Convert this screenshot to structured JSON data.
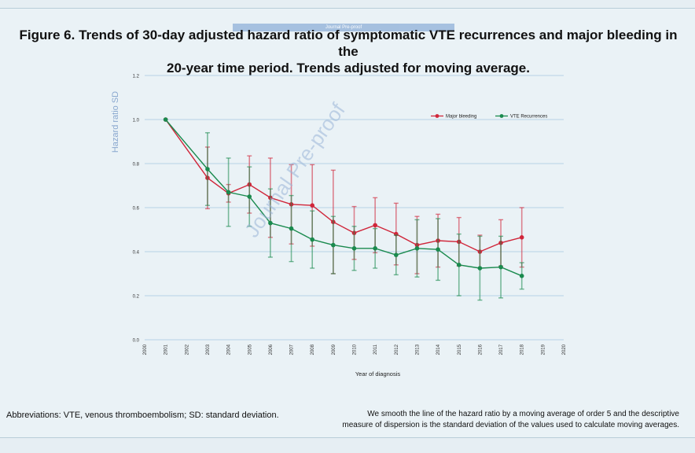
{
  "header": {
    "journal_tag": "Journal Pre-proof",
    "title_line1": "Figure 6. Trends of 30-day adjusted hazard ratio of symptomatic VTE recurrences and major bleeding in the",
    "title_line2": "20-year time period. Trends adjusted for moving average."
  },
  "watermark": "Journal Pre-proof",
  "chart_data": {
    "type": "line",
    "title": "Figure 6. Trends of 30-day adjusted hazard ratio of symptomatic VTE recurrences and major bleeding in the 20-year time period. Trends adjusted for moving average.",
    "xlabel": "Year of diagnosis",
    "ylabel": "Hazard ratio SD",
    "xlim": [
      2000,
      2020
    ],
    "ylim": [
      0,
      1.2
    ],
    "x_ticks": [
      "2000",
      "2001",
      "2002",
      "2003",
      "2004",
      "2005",
      "2006",
      "2007",
      "2008",
      "2009",
      "2010",
      "2011",
      "2012",
      "2013",
      "2014",
      "2015",
      "2016",
      "2017",
      "2018",
      "2019",
      "2020"
    ],
    "y_ticks": [
      "0.0",
      "0.2",
      "0.4",
      "0.6",
      "0.8",
      "1.0",
      "1.2"
    ],
    "grid": "horizontal",
    "legend_position": "top-right",
    "series": [
      {
        "name": "Major bleeding",
        "color": "#d0263a",
        "x": [
          2001,
          2003,
          2004,
          2005,
          2006,
          2007,
          2008,
          2009,
          2010,
          2011,
          2012,
          2013,
          2014,
          2015,
          2016,
          2017,
          2018
        ],
        "values": [
          1.0,
          0.735,
          0.665,
          0.705,
          0.645,
          0.615,
          0.61,
          0.535,
          0.485,
          0.52,
          0.48,
          0.43,
          0.45,
          0.445,
          0.4,
          0.44,
          0.465
        ],
        "error": [
          0,
          0.14,
          0.04,
          0.13,
          0.18,
          0.18,
          0.185,
          0.235,
          0.12,
          0.125,
          0.14,
          0.13,
          0.12,
          0.11,
          0.075,
          0.105,
          0.135
        ]
      },
      {
        "name": "VTE Recurrences",
        "color": "#1a8a4e",
        "x": [
          2001,
          2003,
          2004,
          2005,
          2006,
          2007,
          2008,
          2009,
          2010,
          2011,
          2012,
          2013,
          2014,
          2015,
          2016,
          2017,
          2018
        ],
        "values": [
          1.0,
          0.775,
          0.67,
          0.65,
          0.53,
          0.505,
          0.455,
          0.43,
          0.415,
          0.415,
          0.385,
          0.415,
          0.41,
          0.34,
          0.325,
          0.33,
          0.29
        ],
        "error": [
          0,
          0.165,
          0.155,
          0.135,
          0.155,
          0.15,
          0.13,
          0.13,
          0.1,
          0.09,
          0.09,
          0.13,
          0.14,
          0.14,
          0.145,
          0.14,
          0.06
        ]
      }
    ]
  },
  "footer": {
    "abbreviations": "Abbreviations: VTE, venous thromboembolism; SD: standard deviation.",
    "note_line1": "We smooth the line of the hazard ratio by a moving average of order 5 and the descriptive",
    "note_line2": "measure of dispersion is the standard deviation of the values used to calculate moving averages."
  }
}
